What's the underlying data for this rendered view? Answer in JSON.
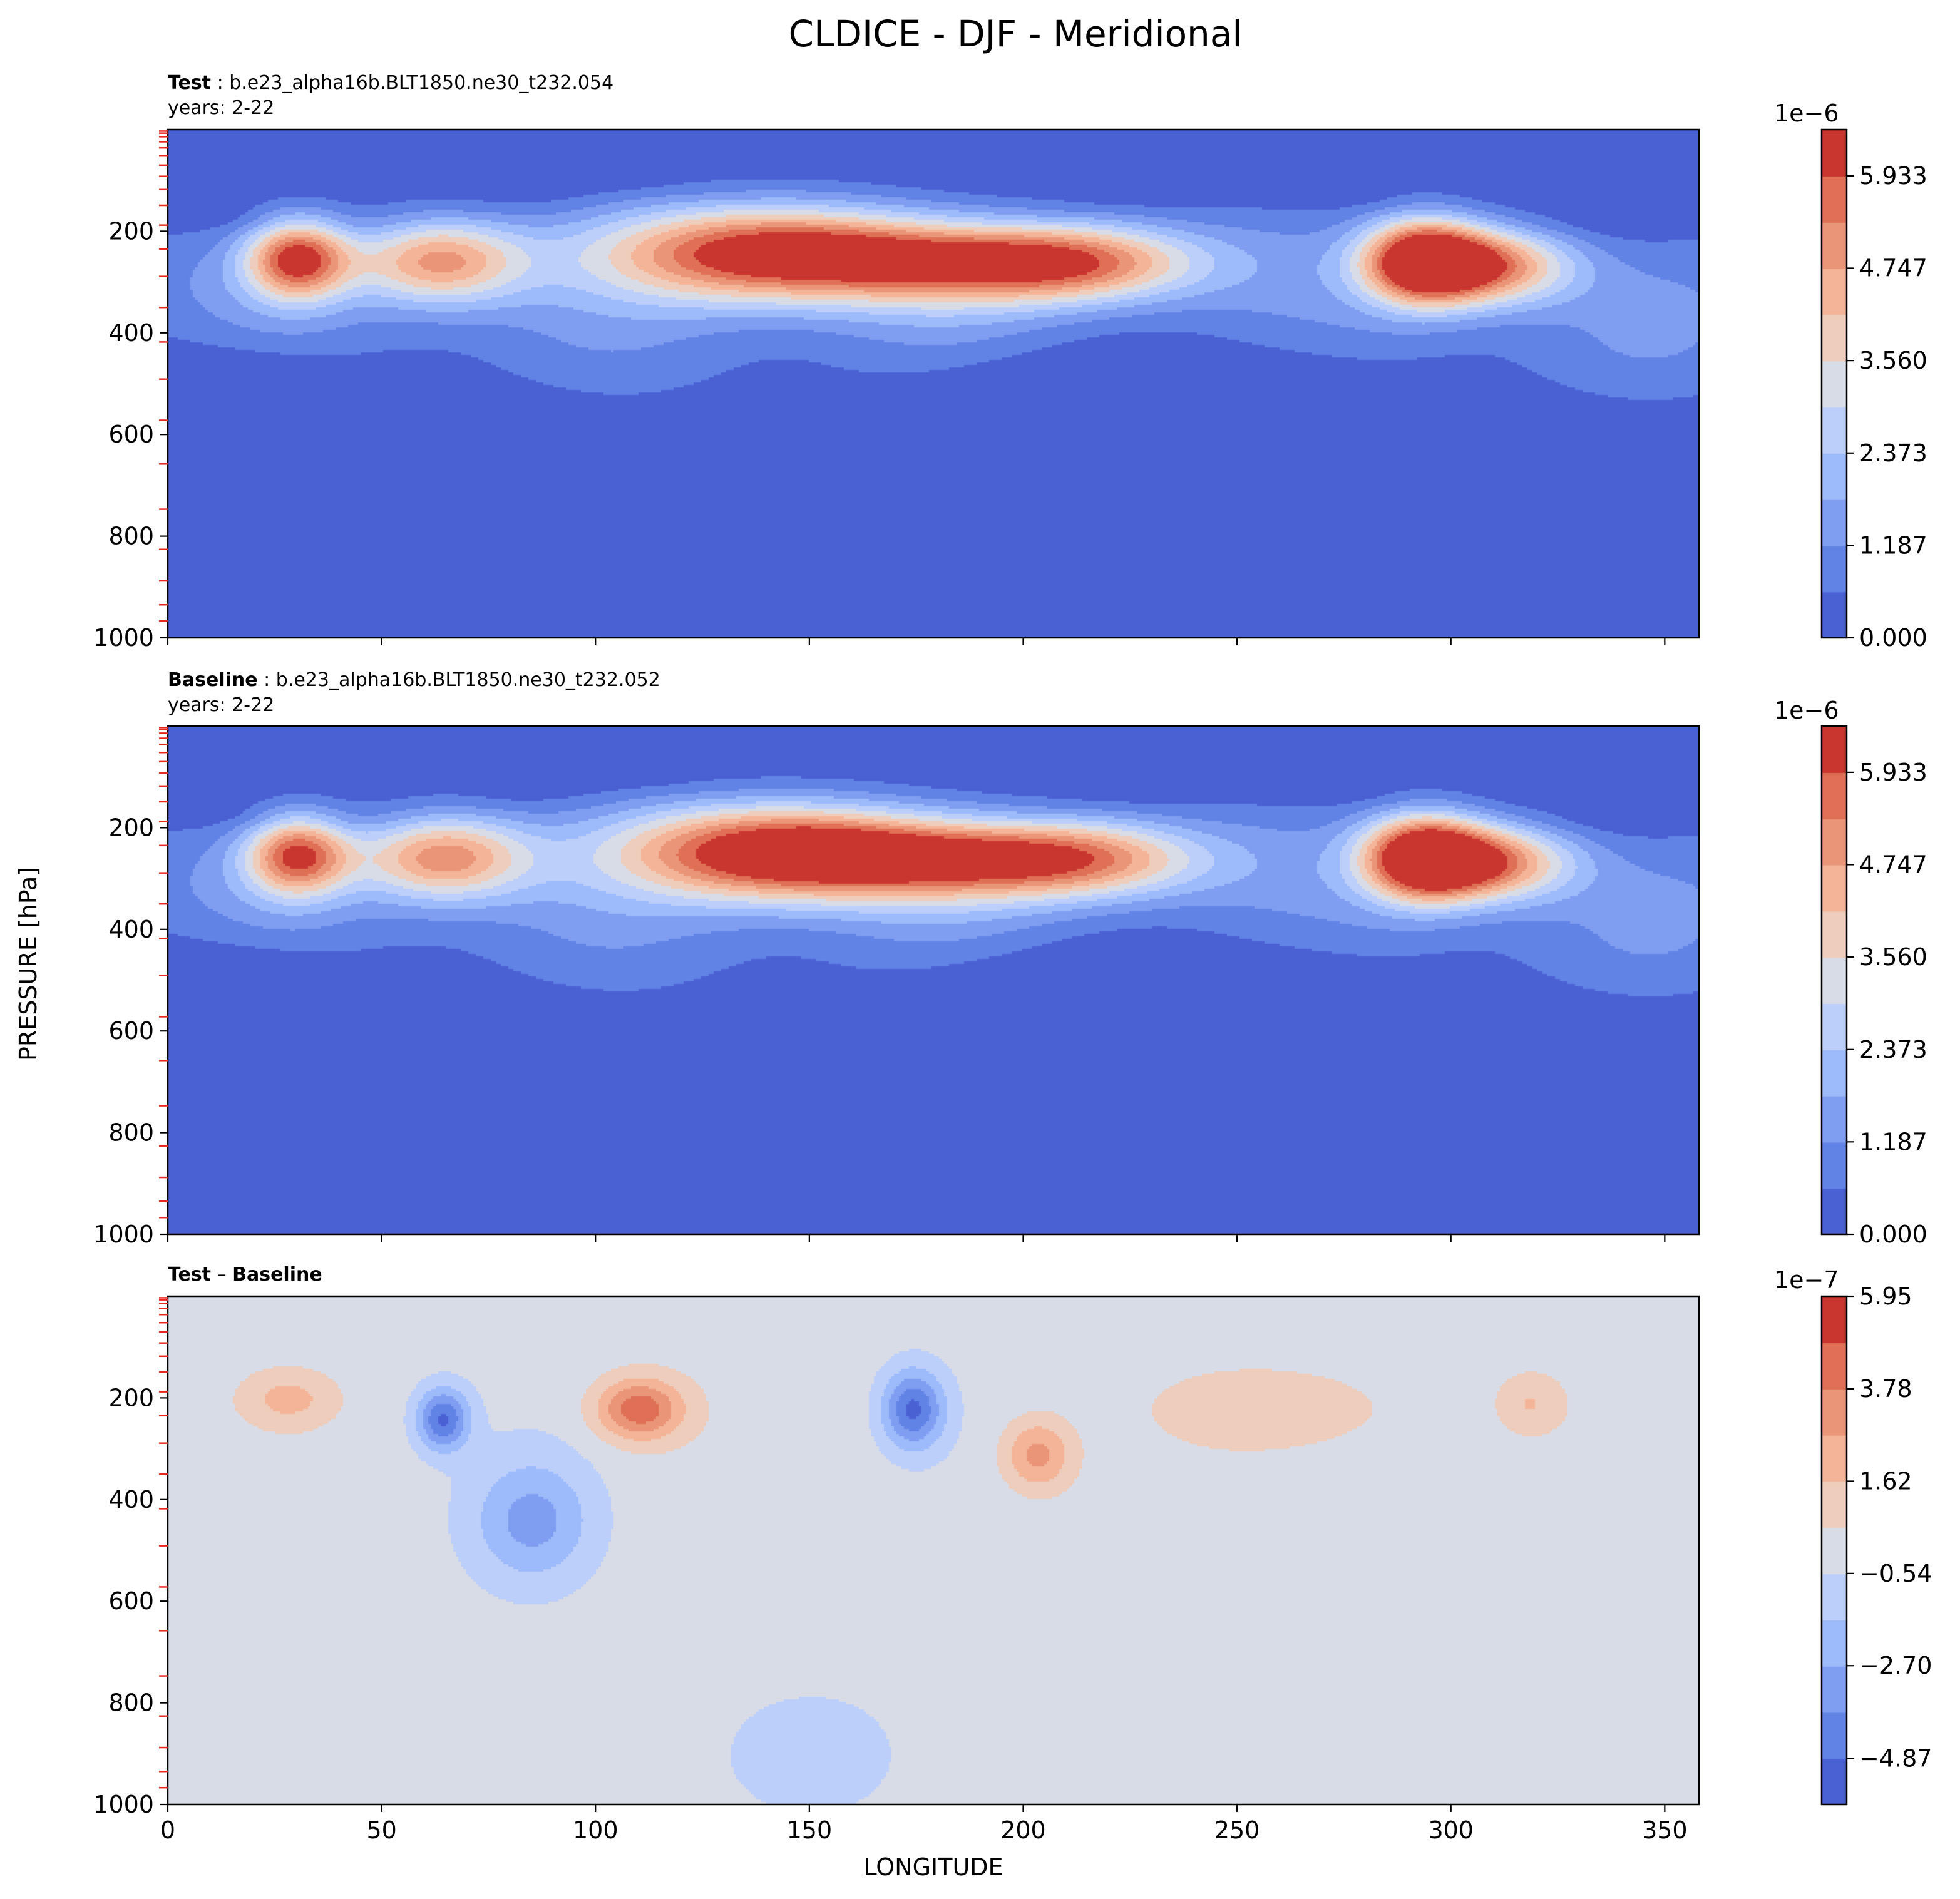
{
  "figure_title": "CLDICE - DJF - Meridional",
  "colors": {
    "cmap_coolwarm": [
      "#4a61d4",
      "#6283e6",
      "#7f9ef2",
      "#9dbafa",
      "#bccffa",
      "#d7dce6",
      "#efcdbc",
      "#f3b497",
      "#ea9478",
      "#df6f55",
      "#c93630"
    ]
  },
  "chart_data": [
    {
      "type": "heatmap",
      "subtitle_bold": "Test",
      "subtitle_rest": " : b.e23_alpha16b.BLT1850.ne30_t232.054",
      "years_label": "years: 2-22",
      "xlabel": "",
      "ylabel": "PRESSURE [hPa]",
      "xlim": [
        0,
        358
      ],
      "ylim": [
        1000,
        0
      ],
      "x_ticks": [
        0,
        50,
        100,
        150,
        200,
        250,
        300,
        350
      ],
      "x_tick_labels": [],
      "y_ticks": [
        200,
        400,
        600,
        800,
        1000
      ],
      "y_tick_labels": [
        "200",
        "400",
        "600",
        "800",
        "1000"
      ],
      "model_levels_hPa": [
        3,
        7,
        14,
        24,
        36,
        52,
        70,
        92,
        118,
        149,
        188,
        235,
        289,
        350,
        418,
        491,
        572,
        658,
        747,
        826,
        888,
        935,
        967
      ],
      "colorbar": {
        "offset_label": "1e−6",
        "ticks": [
          0.0,
          1.187,
          2.373,
          3.56,
          4.747,
          5.933
        ],
        "tick_labels": [
          "0.000",
          "1.187",
          "2.373",
          "3.560",
          "4.747",
          "5.933"
        ],
        "vmin": 0.0,
        "vmax": 6.527,
        "levels": 11
      },
      "features": [
        {
          "lon": 30,
          "p": 250,
          "peak": 5.6,
          "wlon": 12,
          "wp": 80
        },
        {
          "lon": 63,
          "p": 255,
          "peak": 4.4,
          "wlon": 20,
          "wp": 85
        },
        {
          "lon": 140,
          "p": 240,
          "peak": 6.1,
          "wlon": 38,
          "wp": 95
        },
        {
          "lon": 185,
          "p": 255,
          "peak": 3.9,
          "wlon": 35,
          "wp": 80
        },
        {
          "lon": 215,
          "p": 260,
          "peak": 3.6,
          "wlon": 28,
          "wp": 75
        },
        {
          "lon": 293,
          "p": 255,
          "peak": 6.0,
          "wlon": 14,
          "wp": 85
        },
        {
          "lon": 308,
          "p": 265,
          "peak": 4.9,
          "wlon": 20,
          "wp": 75
        }
      ]
    },
    {
      "type": "heatmap",
      "subtitle_bold": "Baseline",
      "subtitle_rest": " : b.e23_alpha16b.BLT1850.ne30_t232.052",
      "years_label": "years: 2-22",
      "xlabel": "",
      "ylabel": "PRESSURE [hPa]",
      "xlim": [
        0,
        358
      ],
      "ylim": [
        1000,
        0
      ],
      "x_ticks": [
        0,
        50,
        100,
        150,
        200,
        250,
        300,
        350
      ],
      "x_tick_labels": [],
      "y_ticks": [
        200,
        400,
        600,
        800,
        1000
      ],
      "y_tick_labels": [
        "200",
        "400",
        "600",
        "800",
        "1000"
      ],
      "model_levels_hPa": [
        3,
        7,
        14,
        24,
        36,
        52,
        70,
        92,
        118,
        149,
        188,
        235,
        289,
        350,
        418,
        491,
        572,
        658,
        747,
        826,
        888,
        935,
        967
      ],
      "colorbar": {
        "offset_label": "1e−6",
        "ticks": [
          0.0,
          1.187,
          2.373,
          3.56,
          4.747,
          5.933
        ],
        "tick_labels": [
          "0.000",
          "1.187",
          "2.373",
          "3.560",
          "4.747",
          "5.933"
        ],
        "vmin": 0.0,
        "vmax": 6.527,
        "levels": 11
      },
      "features": [
        {
          "lon": 30,
          "p": 250,
          "peak": 5.3,
          "wlon": 12,
          "wp": 80
        },
        {
          "lon": 64,
          "p": 255,
          "peak": 4.6,
          "wlon": 20,
          "wp": 85
        },
        {
          "lon": 141,
          "p": 245,
          "peak": 6.2,
          "wlon": 36,
          "wp": 95
        },
        {
          "lon": 180,
          "p": 255,
          "peak": 4.1,
          "wlon": 35,
          "wp": 80
        },
        {
          "lon": 215,
          "p": 260,
          "peak": 3.8,
          "wlon": 28,
          "wp": 75
        },
        {
          "lon": 293,
          "p": 255,
          "peak": 6.1,
          "wlon": 14,
          "wp": 85
        },
        {
          "lon": 308,
          "p": 265,
          "peak": 5.0,
          "wlon": 20,
          "wp": 75
        }
      ]
    },
    {
      "type": "heatmap",
      "subtitle_bold": "Test",
      "subtitle_sep": " – ",
      "subtitle_bold2": "Baseline",
      "xlabel": "LONGITUDE",
      "ylabel": "PRESSURE [hPa]",
      "xlim": [
        0,
        358
      ],
      "ylim": [
        1000,
        0
      ],
      "x_ticks": [
        0,
        50,
        100,
        150,
        200,
        250,
        300,
        350
      ],
      "x_tick_labels": [
        "0",
        "50",
        "100",
        "150",
        "200",
        "250",
        "300",
        "350"
      ],
      "y_ticks": [
        200,
        400,
        600,
        800,
        1000
      ],
      "y_tick_labels": [
        "200",
        "400",
        "600",
        "800",
        "1000"
      ],
      "model_levels_hPa": [
        3,
        7,
        14,
        24,
        36,
        52,
        70,
        92,
        118,
        149,
        188,
        235,
        289,
        350,
        418,
        491,
        572,
        658,
        747,
        826,
        888,
        935,
        967
      ],
      "colorbar": {
        "offset_label": "1e−7",
        "ticks": [
          -4.87,
          -2.7,
          -0.54,
          1.62,
          3.78,
          5.95
        ],
        "tick_labels": [
          "−4.87",
          "−2.70",
          "−0.54",
          "1.62",
          "3.78",
          "5.95"
        ],
        "vmin": -5.95,
        "vmax": 5.95,
        "levels": 11
      },
      "features": [
        {
          "lon": 28,
          "p": 200,
          "peak": 1.9,
          "wlon": 10,
          "wp": 50
        },
        {
          "lon": 64,
          "p": 240,
          "peak": -4.9,
          "wlon": 6,
          "wp": 60
        },
        {
          "lon": 85,
          "p": 440,
          "peak": -3.0,
          "wlon": 14,
          "wp": 120
        },
        {
          "lon": 110,
          "p": 220,
          "peak": 4.6,
          "wlon": 10,
          "wp": 60
        },
        {
          "lon": 174,
          "p": 220,
          "peak": -5.0,
          "wlon": 7,
          "wp": 75
        },
        {
          "lon": 203,
          "p": 310,
          "peak": 3.2,
          "wlon": 8,
          "wp": 70
        },
        {
          "lon": 260,
          "p": 220,
          "peak": 1.5,
          "wlon": 25,
          "wp": 70
        },
        {
          "lon": 150,
          "p": 900,
          "peak": -1.6,
          "wlon": 18,
          "wp": 110
        },
        {
          "lon": 318,
          "p": 210,
          "peak": 1.7,
          "wlon": 8,
          "wp": 60
        }
      ]
    }
  ]
}
